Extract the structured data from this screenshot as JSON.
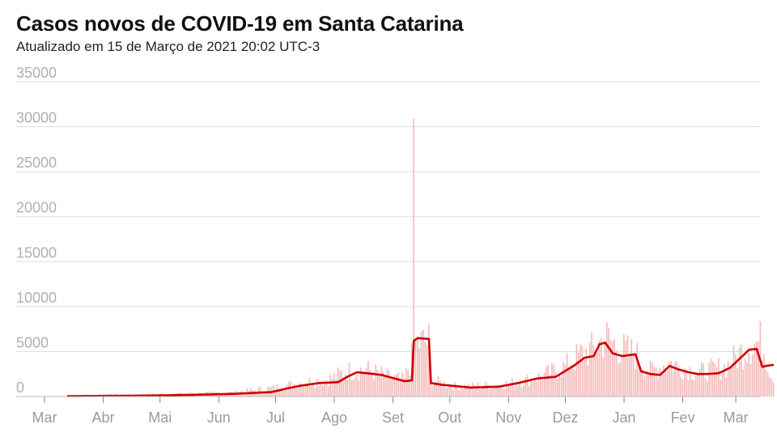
{
  "title": "Casos novos de COVID-19 em Santa Catarina",
  "subtitle": "Atualizado em 15 de Março de 2021 20:02 UTC-3",
  "chart_data": {
    "type": "bar",
    "series": [
      {
        "kind": "bar",
        "color": "#f4b9b9",
        "values_description": "daily new cases"
      },
      {
        "kind": "line",
        "color": "#cc0000",
        "values_description": "moving average"
      }
    ],
    "y_ticks": [
      "35000",
      "30000",
      "25000",
      "20000",
      "15000",
      "10000",
      "5000",
      "0"
    ],
    "ylim": [
      0,
      35000
    ],
    "x_ticks": [
      "Mar",
      "Abr",
      "Mai",
      "Jun",
      "Jul",
      "Ago",
      "Set",
      "Out",
      "Nov",
      "Dez",
      "Jan",
      "Fev",
      "Mar"
    ],
    "x_tick_day_index": [
      0,
      31,
      61,
      92,
      122,
      153,
      184,
      214,
      245,
      275,
      306,
      337,
      365
    ],
    "x_range_days": [
      0,
      379
    ],
    "grid": true,
    "average_keypoints": [
      [
        12,
        50
      ],
      [
        40,
        80
      ],
      [
        60,
        120
      ],
      [
        80,
        200
      ],
      [
        100,
        300
      ],
      [
        120,
        500
      ],
      [
        128,
        900
      ],
      [
        135,
        1200
      ],
      [
        145,
        1500
      ],
      [
        155,
        1600
      ],
      [
        160,
        2200
      ],
      [
        165,
        2700
      ],
      [
        170,
        2600
      ],
      [
        178,
        2400
      ],
      [
        185,
        2000
      ],
      [
        190,
        1700
      ],
      [
        194,
        1800
      ],
      [
        195,
        6200
      ],
      [
        197,
        6500
      ],
      [
        203,
        6400
      ],
      [
        204,
        1500
      ],
      [
        210,
        1300
      ],
      [
        225,
        1000
      ],
      [
        240,
        1100
      ],
      [
        250,
        1500
      ],
      [
        260,
        2000
      ],
      [
        270,
        2200
      ],
      [
        280,
        3500
      ],
      [
        285,
        4300
      ],
      [
        290,
        4500
      ],
      [
        293,
        5800
      ],
      [
        296,
        6000
      ],
      [
        300,
        4800
      ],
      [
        305,
        4500
      ],
      [
        312,
        4700
      ],
      [
        315,
        2800
      ],
      [
        320,
        2500
      ],
      [
        325,
        2400
      ],
      [
        330,
        3400
      ],
      [
        335,
        3000
      ],
      [
        340,
        2700
      ],
      [
        345,
        2500
      ],
      [
        350,
        2500
      ],
      [
        356,
        2600
      ],
      [
        362,
        3200
      ],
      [
        367,
        4200
      ],
      [
        372,
        5200
      ],
      [
        376,
        5300
      ],
      [
        379,
        3300
      ],
      [
        381,
        3400
      ],
      [
        384,
        3500
      ]
    ],
    "bar_keypoints": [
      [
        0,
        0
      ],
      [
        12,
        100
      ],
      [
        60,
        300
      ],
      [
        100,
        500
      ],
      [
        120,
        1000
      ],
      [
        135,
        1600
      ],
      [
        150,
        2000
      ],
      [
        160,
        3000
      ],
      [
        170,
        3200
      ],
      [
        183,
        2200
      ],
      [
        190,
        2000
      ],
      [
        194,
        4500
      ],
      [
        195,
        30900
      ],
      [
        196,
        6200
      ],
      [
        203,
        6400
      ],
      [
        204,
        2000
      ],
      [
        215,
        1200
      ],
      [
        240,
        1300
      ],
      [
        260,
        2200
      ],
      [
        275,
        3500
      ],
      [
        285,
        5200
      ],
      [
        290,
        5500
      ],
      [
        296,
        7000
      ],
      [
        305,
        5500
      ],
      [
        312,
        5000
      ],
      [
        320,
        3000
      ],
      [
        330,
        4000
      ],
      [
        345,
        2800
      ],
      [
        360,
        3500
      ],
      [
        372,
        6000
      ],
      [
        379,
        6500
      ],
      [
        384,
        2400
      ]
    ]
  }
}
